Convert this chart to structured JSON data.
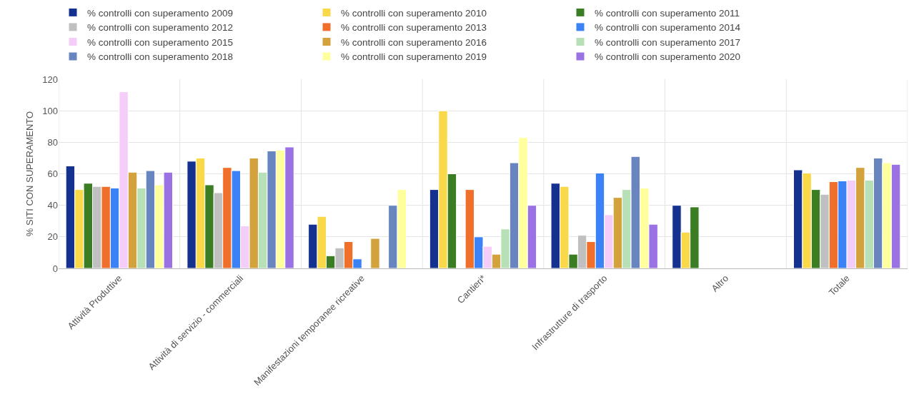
{
  "chart_data": {
    "type": "bar",
    "ylabel": "% SITI CON SUPERAMENTO",
    "categories": [
      "Attività Produttive",
      "Attività di servizio - commerciali",
      "Manifestazioni temporanee ricreative",
      "Cantieri*",
      "Infrastrutture di trasporto",
      "Altro",
      "Totale"
    ],
    "series": [
      {
        "name": "% controlli con superamento 2009",
        "color": "#14318f",
        "values": [
          65,
          68,
          28,
          50,
          54,
          40,
          62.5
        ]
      },
      {
        "name": "% controlli con superamento 2010",
        "color": "#f9d849",
        "values": [
          50,
          70,
          33,
          100,
          52,
          23,
          60.5
        ]
      },
      {
        "name": "% controlli con superamento 2011",
        "color": "#3a7d22",
        "values": [
          54,
          53,
          8,
          60,
          9,
          39,
          50
        ]
      },
      {
        "name": "% controlli con superamento 2012",
        "color": "#c0c0c0",
        "values": [
          52,
          48,
          13,
          null,
          21,
          null,
          47
        ]
      },
      {
        "name": "% controlli con superamento 2013",
        "color": "#f0702b",
        "values": [
          52,
          64,
          17,
          50,
          17,
          null,
          55
        ]
      },
      {
        "name": "% controlli con superamento 2014",
        "color": "#3a82f6",
        "values": [
          51,
          62,
          6,
          20,
          60.5,
          null,
          55.5
        ]
      },
      {
        "name": "% controlli con superamento 2015",
        "color": "#f5cdf9",
        "values": [
          112,
          27,
          null,
          14,
          34,
          null,
          56
        ]
      },
      {
        "name": "% controlli con superamento 2016",
        "color": "#d4a23c",
        "values": [
          61,
          70,
          19,
          9,
          45,
          null,
          64
        ]
      },
      {
        "name": "% controlli con superamento 2017",
        "color": "#b8e0b6",
        "values": [
          51,
          61,
          null,
          25,
          50,
          null,
          56
        ]
      },
      {
        "name": "% controlli con superamento 2018",
        "color": "#6885c0",
        "values": [
          62,
          74.5,
          40,
          67,
          71,
          null,
          70
        ]
      },
      {
        "name": "% controlli con superamento 2019",
        "color": "#ffff9e",
        "values": [
          53,
          75,
          50,
          83,
          51,
          null,
          67
        ]
      },
      {
        "name": "% controlli con superamento 2020",
        "color": "#9b72e4",
        "values": [
          61,
          77,
          null,
          40,
          28,
          null,
          66
        ]
      }
    ],
    "ylim": [
      0,
      120
    ],
    "yticks": [
      0,
      20,
      40,
      60,
      80,
      100,
      120
    ],
    "grid": true,
    "legend": "top"
  }
}
